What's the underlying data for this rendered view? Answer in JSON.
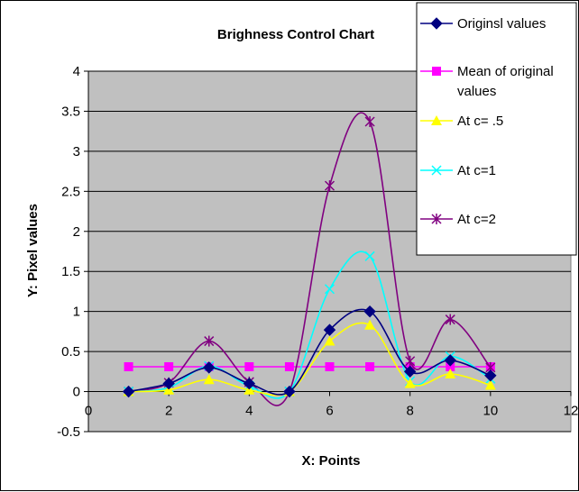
{
  "chart_data": {
    "type": "line",
    "title": "Brighness Control Chart",
    "xlabel": "X: Points",
    "ylabel": "Y: Pixel values",
    "xlim": [
      0,
      12
    ],
    "ylim": [
      -0.5,
      4
    ],
    "x_ticks": [
      "0",
      "2",
      "4",
      "6",
      "8",
      "10",
      "12"
    ],
    "y_ticks": [
      "-0.5",
      "0",
      "0.5",
      "1",
      "1.5",
      "2",
      "2.5",
      "3",
      "3.5",
      "4"
    ],
    "grid": "horizontal",
    "plot_background": "#c0c0c0",
    "legend_position": "top-right",
    "x": [
      1,
      2,
      3,
      4,
      5,
      6,
      7,
      8,
      9,
      10
    ],
    "series": [
      {
        "name": "Originsl values",
        "color": "#000080",
        "marker": "diamond",
        "values": [
          0,
          0.1,
          0.3,
          0.1,
          0,
          0.77,
          1.0,
          0.25,
          0.39,
          0.2
        ]
      },
      {
        "name": "Mean of original values",
        "color": "#ff00ff",
        "marker": "square",
        "values": [
          0.31,
          0.31,
          0.31,
          0.31,
          0.31,
          0.31,
          0.31,
          0.31,
          0.31,
          0.31
        ]
      },
      {
        "name": "At c= .5",
        "color": "#ffff00",
        "marker": "triangle",
        "values": [
          0,
          0.02,
          0.15,
          0.02,
          0,
          0.63,
          0.83,
          0.1,
          0.22,
          0.08
        ]
      },
      {
        "name": "At c=1",
        "color": "#00ffff",
        "marker": "x",
        "values": [
          0,
          0.05,
          0.32,
          0.07,
          0,
          1.28,
          1.69,
          0.13,
          0.44,
          0.16
        ]
      },
      {
        "name": "At c=2",
        "color": "#800080",
        "marker": "star",
        "values": [
          0,
          0.11,
          0.63,
          0.12,
          0,
          2.57,
          3.37,
          0.38,
          0.9,
          0.3
        ]
      }
    ]
  }
}
